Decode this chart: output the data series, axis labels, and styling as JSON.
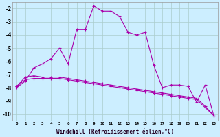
{
  "xlabel": "Windchill (Refroidissement éolien,°C)",
  "background_color": "#cceeff",
  "grid_color": "#aacccc",
  "line_color": "#aa00aa",
  "x_min": 0,
  "x_max": 23,
  "y_min": -10.5,
  "y_max": -1.5,
  "yticks": [
    -10,
    -9,
    -8,
    -7,
    -6,
    -5,
    -4,
    -3,
    -2
  ],
  "xticks": [
    0,
    1,
    2,
    3,
    4,
    5,
    6,
    7,
    8,
    9,
    10,
    11,
    12,
    13,
    14,
    15,
    16,
    17,
    18,
    19,
    20,
    21,
    22,
    23
  ],
  "series1_x": [
    0,
    1,
    2,
    3,
    4,
    5,
    6,
    7,
    8,
    9,
    10,
    11,
    12,
    13,
    14,
    15,
    16,
    17,
    18,
    19,
    20,
    21,
    22,
    23
  ],
  "series1_y": [
    -8.0,
    -7.5,
    -6.5,
    -6.2,
    -5.8,
    -5.0,
    -6.2,
    -3.6,
    -3.6,
    -1.8,
    -2.2,
    -2.2,
    -2.6,
    -3.8,
    -4.0,
    -3.8,
    -6.3,
    -8.0,
    -7.8,
    -7.8,
    -7.9,
    -9.1,
    -7.8,
    -10.1
  ],
  "series2_x": [
    0,
    1,
    2,
    3,
    4,
    5,
    6,
    7,
    8,
    9,
    10,
    11,
    12,
    13,
    14,
    15,
    16,
    17,
    18,
    19,
    20,
    21,
    22,
    23
  ],
  "series2_y": [
    -7.9,
    -7.2,
    -7.1,
    -7.2,
    -7.2,
    -7.2,
    -7.3,
    -7.4,
    -7.5,
    -7.6,
    -7.7,
    -7.8,
    -7.9,
    -8.0,
    -8.1,
    -8.2,
    -8.3,
    -8.4,
    -8.5,
    -8.6,
    -8.7,
    -8.8,
    -9.4,
    -10.1
  ],
  "series3_x": [
    0,
    1,
    2,
    3,
    4,
    5,
    6,
    7,
    8,
    9,
    10,
    11,
    12,
    13,
    14,
    15,
    16,
    17,
    18,
    19,
    20,
    21,
    22,
    23
  ],
  "series3_y": [
    -7.9,
    -7.4,
    -7.3,
    -7.3,
    -7.3,
    -7.3,
    -7.4,
    -7.5,
    -7.6,
    -7.7,
    -7.8,
    -7.9,
    -8.0,
    -8.1,
    -8.2,
    -8.3,
    -8.4,
    -8.5,
    -8.6,
    -8.7,
    -8.8,
    -8.9,
    -9.5,
    -10.1
  ]
}
